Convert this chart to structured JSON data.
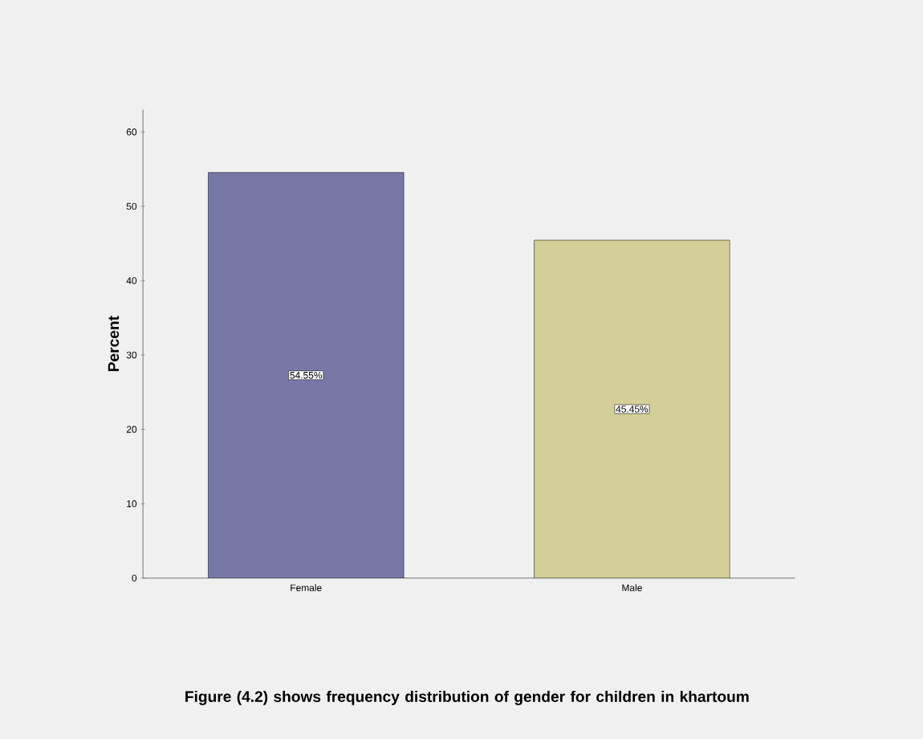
{
  "chart_data": {
    "type": "bar",
    "title": "Figure (4.2) shows frequency distribution of gender for children in khartoum",
    "ylabel": "Percent",
    "categories": [
      "Female",
      "Male"
    ],
    "values": [
      54.55,
      45.45
    ],
    "value_labels": [
      "54.55%",
      "45.45%"
    ],
    "colors": [
      "#7878a8",
      "#d4cf98"
    ],
    "ylim": [
      0,
      63
    ],
    "yticks": [
      0,
      10,
      20,
      30,
      40,
      50,
      60
    ]
  }
}
